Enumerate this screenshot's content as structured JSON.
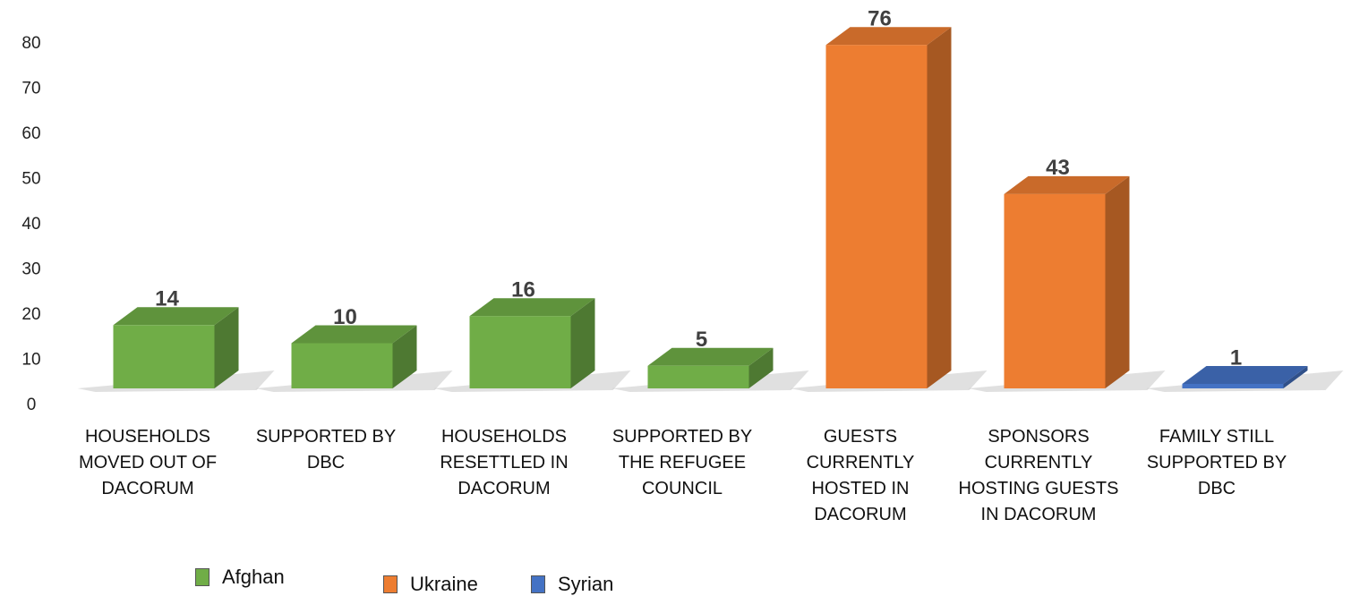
{
  "chart_data": {
    "type": "bar",
    "categories": [
      "HOUSEHOLDS MOVED OUT OF DACORUM",
      "SUPPORTED BY DBC",
      "HOUSEHOLDS RESETTLED IN DACORUM",
      "SUPPORTED BY THE REFUGEE COUNCIL",
      "GUESTS CURRENTLY HOSTED IN DACORUM",
      "SPONSORS CURRENTLY HOSTING GUESTS IN DACORUM",
      "FAMILY STILL SUPPORTED BY DBC"
    ],
    "series": [
      {
        "name": "Afghan",
        "color": "#70ad47",
        "values": [
          14,
          10,
          16,
          5,
          null,
          null,
          null
        ]
      },
      {
        "name": "Ukraine",
        "color": "#ed7d31",
        "values": [
          null,
          null,
          null,
          null,
          76,
          43,
          null
        ]
      },
      {
        "name": "Syrian",
        "color": "#4472c4",
        "values": [
          null,
          null,
          null,
          null,
          null,
          null,
          1
        ]
      }
    ],
    "ylim": [
      0,
      80
    ],
    "yticks": [
      0,
      10,
      20,
      30,
      40,
      50,
      60,
      70,
      80
    ]
  }
}
